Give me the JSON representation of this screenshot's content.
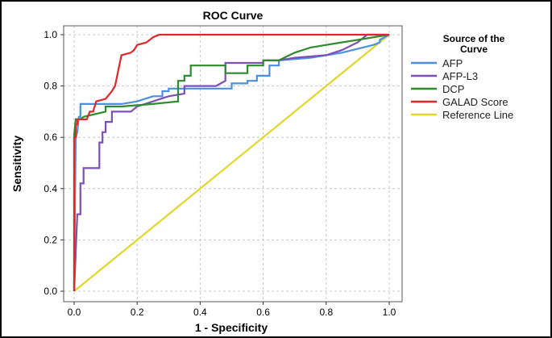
{
  "chart_data": {
    "type": "line",
    "title": "ROC Curve",
    "xlabel": "1 - Specificity",
    "ylabel": "Sensitivity",
    "xlim": [
      0,
      1
    ],
    "ylim": [
      0,
      1
    ],
    "xticks": [
      "0.0",
      "0.2",
      "0.4",
      "0.6",
      "0.8",
      "1.0"
    ],
    "yticks": [
      "0.0",
      "0.2",
      "0.4",
      "0.6",
      "0.8",
      "1.0"
    ],
    "grid": true,
    "legend_title": "Source of the Curve",
    "legend_position": "right",
    "series": [
      {
        "name": "AFP",
        "color": "#4a90e2",
        "points": [
          [
            0,
            0
          ],
          [
            0,
            0.02
          ],
          [
            0.005,
            0.6
          ],
          [
            0.01,
            0.62
          ],
          [
            0.015,
            0.68
          ],
          [
            0.02,
            0.68
          ],
          [
            0.02,
            0.73
          ],
          [
            0.1,
            0.73
          ],
          [
            0.15,
            0.73
          ],
          [
            0.2,
            0.74
          ],
          [
            0.25,
            0.76
          ],
          [
            0.28,
            0.76
          ],
          [
            0.28,
            0.78
          ],
          [
            0.3,
            0.78
          ],
          [
            0.3,
            0.79
          ],
          [
            0.5,
            0.79
          ],
          [
            0.5,
            0.81
          ],
          [
            0.55,
            0.81
          ],
          [
            0.55,
            0.82
          ],
          [
            0.58,
            0.82
          ],
          [
            0.58,
            0.84
          ],
          [
            0.62,
            0.84
          ],
          [
            0.62,
            0.88
          ],
          [
            0.65,
            0.88
          ],
          [
            0.65,
            0.9
          ],
          [
            0.75,
            0.91
          ],
          [
            0.85,
            0.93
          ],
          [
            0.95,
            0.96
          ],
          [
            0.97,
            0.97
          ],
          [
            0.97,
            0.98
          ],
          [
            1.0,
            1.0
          ]
        ]
      },
      {
        "name": "AFP-L3",
        "color": "#7d4fb8",
        "points": [
          [
            0,
            0
          ],
          [
            0.01,
            0.3
          ],
          [
            0.02,
            0.3
          ],
          [
            0.02,
            0.42
          ],
          [
            0.03,
            0.42
          ],
          [
            0.03,
            0.48
          ],
          [
            0.08,
            0.48
          ],
          [
            0.08,
            0.58
          ],
          [
            0.09,
            0.58
          ],
          [
            0.09,
            0.62
          ],
          [
            0.1,
            0.62
          ],
          [
            0.1,
            0.66
          ],
          [
            0.12,
            0.66
          ],
          [
            0.12,
            0.7
          ],
          [
            0.18,
            0.7
          ],
          [
            0.2,
            0.72
          ],
          [
            0.25,
            0.74
          ],
          [
            0.3,
            0.76
          ],
          [
            0.35,
            0.77
          ],
          [
            0.35,
            0.8
          ],
          [
            0.45,
            0.8
          ],
          [
            0.48,
            0.82
          ],
          [
            0.48,
            0.89
          ],
          [
            0.5,
            0.89
          ],
          [
            0.55,
            0.89
          ],
          [
            0.6,
            0.89
          ],
          [
            0.6,
            0.9
          ],
          [
            0.65,
            0.9
          ],
          [
            0.7,
            0.91
          ],
          [
            0.8,
            0.92
          ],
          [
            0.85,
            0.94
          ],
          [
            0.9,
            0.97
          ],
          [
            0.93,
            1.0
          ],
          [
            1.0,
            1.0
          ]
        ]
      },
      {
        "name": "DCP",
        "color": "#2e8b2e",
        "points": [
          [
            0,
            0
          ],
          [
            0,
            0.61
          ],
          [
            0.005,
            0.67
          ],
          [
            0.02,
            0.67
          ],
          [
            0.03,
            0.68
          ],
          [
            0.1,
            0.7
          ],
          [
            0.1,
            0.72
          ],
          [
            0.15,
            0.72
          ],
          [
            0.25,
            0.73
          ],
          [
            0.33,
            0.74
          ],
          [
            0.33,
            0.82
          ],
          [
            0.35,
            0.82
          ],
          [
            0.35,
            0.84
          ],
          [
            0.37,
            0.84
          ],
          [
            0.37,
            0.88
          ],
          [
            0.45,
            0.88
          ],
          [
            0.48,
            0.88
          ],
          [
            0.48,
            0.85
          ],
          [
            0.55,
            0.85
          ],
          [
            0.55,
            0.88
          ],
          [
            0.6,
            0.88
          ],
          [
            0.6,
            0.9
          ],
          [
            0.65,
            0.9
          ],
          [
            0.7,
            0.93
          ],
          [
            0.75,
            0.95
          ],
          [
            0.8,
            0.96
          ],
          [
            0.85,
            0.97
          ],
          [
            0.9,
            0.98
          ],
          [
            1.0,
            1.0
          ]
        ]
      },
      {
        "name": "GALAD Score",
        "color": "#e02828",
        "points": [
          [
            0,
            0
          ],
          [
            0,
            0.6
          ],
          [
            0.005,
            0.6
          ],
          [
            0.005,
            0.65
          ],
          [
            0.01,
            0.65
          ],
          [
            0.01,
            0.67
          ],
          [
            0.04,
            0.67
          ],
          [
            0.05,
            0.7
          ],
          [
            0.06,
            0.7
          ],
          [
            0.07,
            0.74
          ],
          [
            0.1,
            0.75
          ],
          [
            0.12,
            0.78
          ],
          [
            0.13,
            0.8
          ],
          [
            0.14,
            0.86
          ],
          [
            0.15,
            0.92
          ],
          [
            0.18,
            0.93
          ],
          [
            0.19,
            0.94
          ],
          [
            0.2,
            0.96
          ],
          [
            0.23,
            0.97
          ],
          [
            0.25,
            0.99
          ],
          [
            0.27,
            1.0
          ],
          [
            1.0,
            1.0
          ]
        ]
      },
      {
        "name": "Reference Line",
        "color": "#e3d62a",
        "points": [
          [
            0,
            0
          ],
          [
            1,
            1
          ]
        ]
      }
    ]
  }
}
